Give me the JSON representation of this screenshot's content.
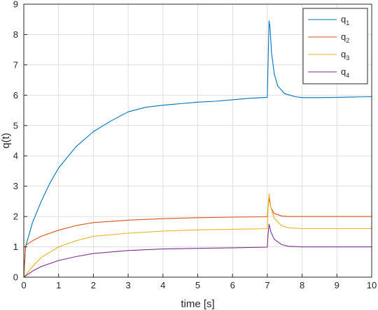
{
  "chart_data": {
    "type": "line",
    "xlabel": "time [s]",
    "ylabel": "q(t)",
    "xlim": [
      0,
      10
    ],
    "ylim": [
      0,
      9
    ],
    "xticks": [
      "0",
      "1",
      "2",
      "3",
      "4",
      "5",
      "6",
      "7",
      "8",
      "9",
      "10"
    ],
    "yticks": [
      "0",
      "1",
      "2",
      "3",
      "4",
      "5",
      "6",
      "7",
      "8",
      "9"
    ],
    "grid": true,
    "legend_position": "top-right",
    "series": [
      {
        "name": "q",
        "subscript": "1",
        "color": "#0072BD",
        "x": [
          0,
          0.05,
          0.25,
          0.5,
          0.75,
          1,
          1.5,
          2,
          2.5,
          3,
          3.5,
          4,
          4.5,
          5,
          5.5,
          6,
          6.5,
          7,
          7.02,
          7.05,
          7.08,
          7.12,
          7.2,
          7.3,
          7.5,
          7.8,
          8,
          8.5,
          9,
          9.5,
          10
        ],
        "y": [
          0,
          1.0,
          1.8,
          2.5,
          3.1,
          3.6,
          4.3,
          4.8,
          5.15,
          5.45,
          5.6,
          5.67,
          5.72,
          5.77,
          5.8,
          5.85,
          5.9,
          5.93,
          7.0,
          8.45,
          8.2,
          7.4,
          6.7,
          6.3,
          6.05,
          5.95,
          5.92,
          5.92,
          5.93,
          5.94,
          5.95
        ]
      },
      {
        "name": "q",
        "subscript": "2",
        "color": "#D95319",
        "x": [
          0,
          0.05,
          0.25,
          0.5,
          1,
          1.5,
          2,
          3,
          4,
          5,
          6,
          7,
          7.02,
          7.05,
          7.1,
          7.2,
          7.4,
          7.6,
          8,
          9,
          10
        ],
        "y": [
          0,
          1.05,
          1.2,
          1.35,
          1.55,
          1.7,
          1.8,
          1.88,
          1.93,
          1.96,
          1.98,
          1.99,
          2.3,
          2.6,
          2.3,
          2.1,
          2.02,
          2.0,
          2.0,
          2.0,
          2.0
        ]
      },
      {
        "name": "q",
        "subscript": "3",
        "color": "#EDB120",
        "x": [
          0,
          0.25,
          0.5,
          1,
          1.5,
          2,
          3,
          4,
          5,
          6,
          7,
          7.02,
          7.05,
          7.1,
          7.2,
          7.4,
          7.6,
          8,
          9,
          10
        ],
        "y": [
          0,
          0.35,
          0.65,
          1.0,
          1.2,
          1.35,
          1.45,
          1.52,
          1.56,
          1.58,
          1.6,
          2.3,
          2.75,
          2.3,
          1.95,
          1.7,
          1.63,
          1.6,
          1.6,
          1.6
        ]
      },
      {
        "name": "q",
        "subscript": "4",
        "color": "#7E2F8E",
        "x": [
          0,
          0.25,
          0.5,
          1,
          1.5,
          2,
          3,
          4,
          5,
          6,
          7,
          7.02,
          7.05,
          7.1,
          7.2,
          7.4,
          7.6,
          8,
          9,
          10
        ],
        "y": [
          0,
          0.2,
          0.35,
          0.55,
          0.68,
          0.78,
          0.88,
          0.93,
          0.95,
          0.97,
          0.99,
          1.4,
          1.75,
          1.5,
          1.25,
          1.08,
          1.02,
          1.0,
          1.0,
          1.0
        ]
      }
    ]
  }
}
